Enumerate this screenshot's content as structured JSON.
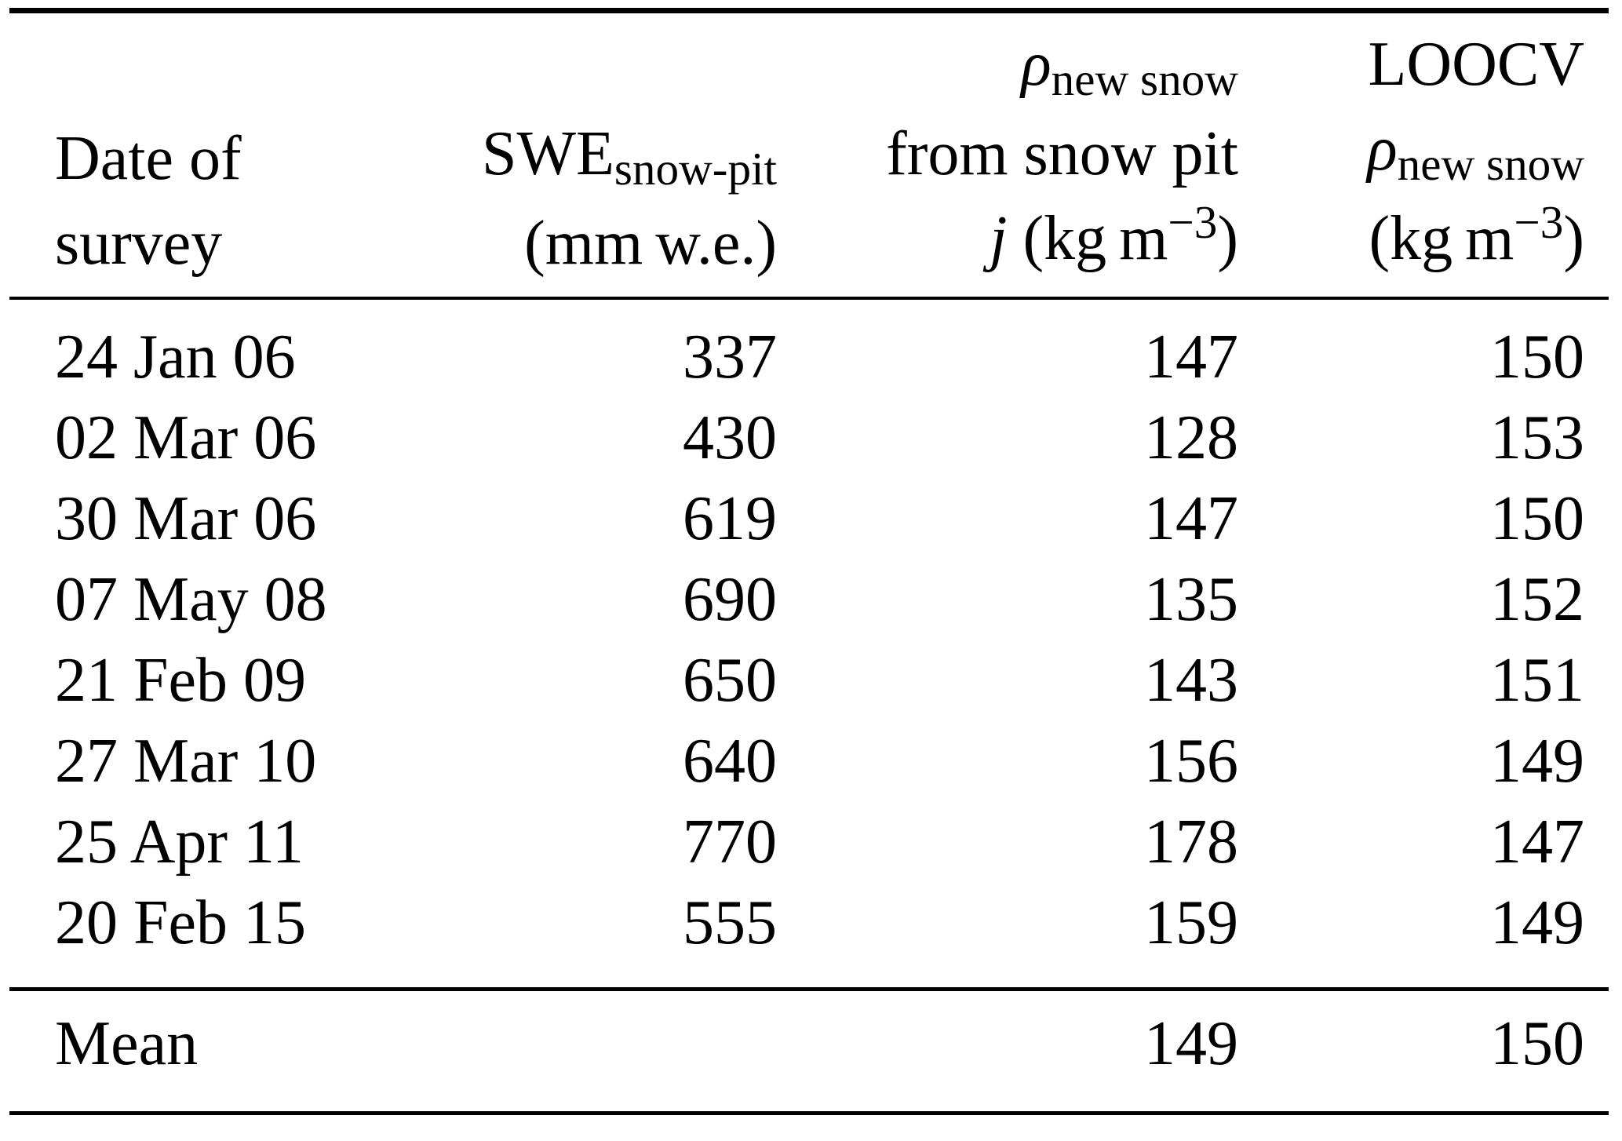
{
  "document": {
    "background": "#ffffff",
    "text_color": "#000000",
    "rule_color": "#000000"
  },
  "header": {
    "col_date": {
      "line1": "Date of",
      "line2": "survey"
    },
    "col_swe": {
      "base": "SWE",
      "subscript": "snow-pit",
      "units": "(mm w.e.)"
    },
    "col_rho_pit": {
      "rho": "ρ",
      "subscript": "new snow",
      "line2": "from snow pit",
      "var": "j",
      "units_prefix": " (kg m",
      "units_sup": "−3",
      "units_suffix": ")"
    },
    "col_rho_loocv": {
      "line1": "LOOCV",
      "rho": "ρ",
      "subscript": "new snow",
      "units_prefix": "(kg m",
      "units_sup": "−3",
      "units_suffix": ")"
    }
  },
  "rows": [
    {
      "date": "24 Jan 06",
      "swe": "337",
      "rho_pit": "147",
      "rho_loocv": "150"
    },
    {
      "date": "02 Mar 06",
      "swe": "430",
      "rho_pit": "128",
      "rho_loocv": "153"
    },
    {
      "date": "30 Mar 06",
      "swe": "619",
      "rho_pit": "147",
      "rho_loocv": "150"
    },
    {
      "date": "07 May 08",
      "swe": "690",
      "rho_pit": "135",
      "rho_loocv": "152"
    },
    {
      "date": "21 Feb 09",
      "swe": "650",
      "rho_pit": "143",
      "rho_loocv": "151"
    },
    {
      "date": "27 Mar 10",
      "swe": "640",
      "rho_pit": "156",
      "rho_loocv": "149"
    },
    {
      "date": "25 Apr 11",
      "swe": "770",
      "rho_pit": "178",
      "rho_loocv": "147"
    },
    {
      "date": "20 Feb 15",
      "swe": "555",
      "rho_pit": "159",
      "rho_loocv": "149"
    }
  ],
  "summary": {
    "label": "Mean",
    "swe": "",
    "rho_pit": "149",
    "rho_loocv": "150"
  }
}
